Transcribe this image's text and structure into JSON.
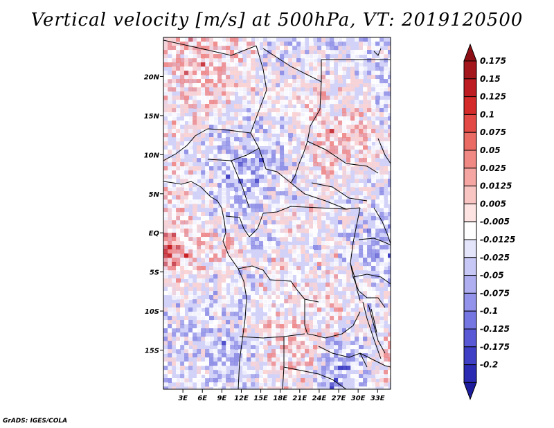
{
  "title": "Vertical velocity [m/s] at 500hPa, VT: 2019120500",
  "credit": "GrADS: IGES/COLA",
  "map": {
    "lon_range": [
      0,
      35
    ],
    "lat_range": [
      -20,
      25
    ],
    "lon_ticks": [
      {
        "value": 3,
        "label": "3E"
      },
      {
        "value": 6,
        "label": "6E"
      },
      {
        "value": 9,
        "label": "9E"
      },
      {
        "value": 12,
        "label": "12E"
      },
      {
        "value": 15,
        "label": "15E"
      },
      {
        "value": 18,
        "label": "18E"
      },
      {
        "value": 21,
        "label": "21E"
      },
      {
        "value": 24,
        "label": "24E"
      },
      {
        "value": 27,
        "label": "27E"
      },
      {
        "value": 30,
        "label": "30E"
      },
      {
        "value": 33,
        "label": "33E"
      }
    ],
    "lat_ticks": [
      {
        "value": 20,
        "label": "20N"
      },
      {
        "value": 15,
        "label": "15N"
      },
      {
        "value": 10,
        "label": "10N"
      },
      {
        "value": 5,
        "label": "5N"
      },
      {
        "value": 0,
        "label": "EQ"
      },
      {
        "value": -5,
        "label": "5S"
      },
      {
        "value": -10,
        "label": "10S"
      },
      {
        "value": -15,
        "label": "15S"
      }
    ],
    "field_colors": {
      "strong_up": "#c71e22",
      "up": "#f08b8b",
      "weak_up": "#fbd3d3",
      "neutral": "#ffffff",
      "weak_down": "#d2d2f8",
      "down": "#8f8fe6",
      "strong_down": "#3b3bc4"
    }
  },
  "colorbar": {
    "levels": [
      {
        "label": "0.175",
        "color": "#a3161c"
      },
      {
        "label": "0.15",
        "color": "#bc1c22"
      },
      {
        "label": "0.125",
        "color": "#d42a2a"
      },
      {
        "label": "0.1",
        "color": "#e34a45"
      },
      {
        "label": "0.075",
        "color": "#ea6b64"
      },
      {
        "label": "0.05",
        "color": "#f08883"
      },
      {
        "label": "0.025",
        "color": "#f5a6a2"
      },
      {
        "label": "0.0125",
        "color": "#f9c5c3"
      },
      {
        "label": "0.005",
        "color": "#fde3e2"
      },
      {
        "label": "-0.005",
        "color": "#ffffff"
      },
      {
        "label": "-0.0125",
        "color": "#e4e4fb"
      },
      {
        "label": "-0.025",
        "color": "#c8c8f6"
      },
      {
        "label": "-0.05",
        "color": "#aeaef1"
      },
      {
        "label": "-0.075",
        "color": "#9393ec"
      },
      {
        "label": "-0.1",
        "color": "#7676e3"
      },
      {
        "label": "-0.125",
        "color": "#5959d6"
      },
      {
        "label": "-0.175",
        "color": "#3f3fc6"
      },
      {
        "label": "-0.2",
        "color": "#2a2ab3"
      }
    ],
    "top_arrow_color": "#8b0f14",
    "bottom_arrow_color": "#1c1c9c"
  }
}
